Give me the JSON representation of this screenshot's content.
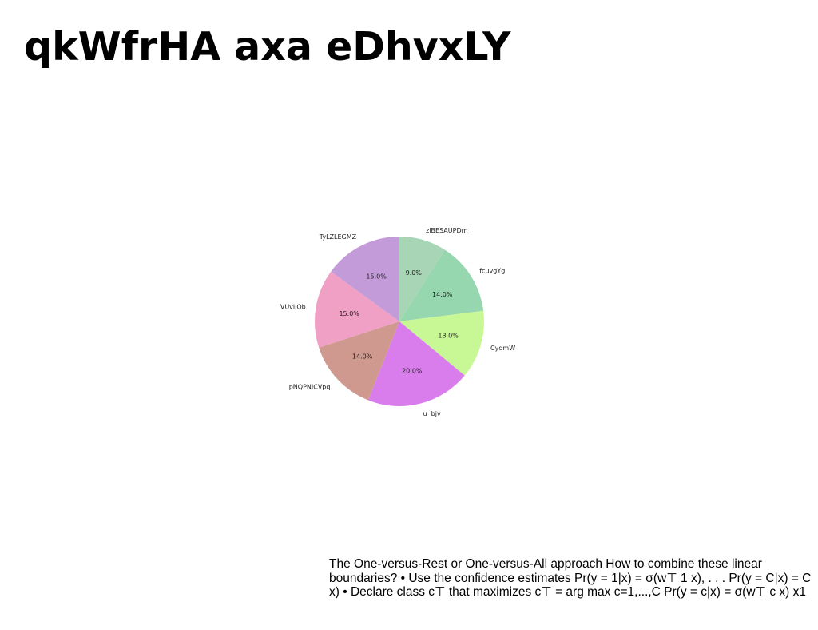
{
  "slide": {
    "title": "qkWfrHA axa eDhvxLY",
    "text": "The One-versus-Rest or One-versus-All approach How to combine these linear boundaries? • Use the confidence estimates Pr(y = 1|x) = σ(w⊤ 1 x), . . . Pr(y = C|x) = C x) • Declare class c⊤ that maximizes c⊤ = arg max c=1,...,C Pr(y = c|x) = σ(w⊤ c x) x1"
  },
  "chart_data": {
    "type": "pie",
    "title": "",
    "start_angle_deg": 90,
    "direction": "clockwise",
    "slices": [
      {
        "label": "zlBESAUPDm",
        "value": 9.0,
        "pct_text": "9.0%",
        "color": "#a8d5b5"
      },
      {
        "label": "fcuvgYg",
        "value": 14.0,
        "pct_text": "14.0%",
        "color": "#96d7b0"
      },
      {
        "label": "CyqmW",
        "value": 13.0,
        "pct_text": "13.0%",
        "color": "#c8f796"
      },
      {
        "label": "u  bjv",
        "value": 20.0,
        "pct_text": "20.0%",
        "color": "#d97ded"
      },
      {
        "label": "pNQPNICVpq",
        "value": 14.0,
        "pct_text": "14.0%",
        "color": "#cf9990"
      },
      {
        "label": "VUvliOb",
        "value": 15.0,
        "pct_text": "15.0%",
        "color": "#f0a0c5"
      },
      {
        "label": "TyLZLEGMZ",
        "value": 15.0,
        "pct_text": "15.0%",
        "color": "#c39bd9"
      }
    ]
  }
}
